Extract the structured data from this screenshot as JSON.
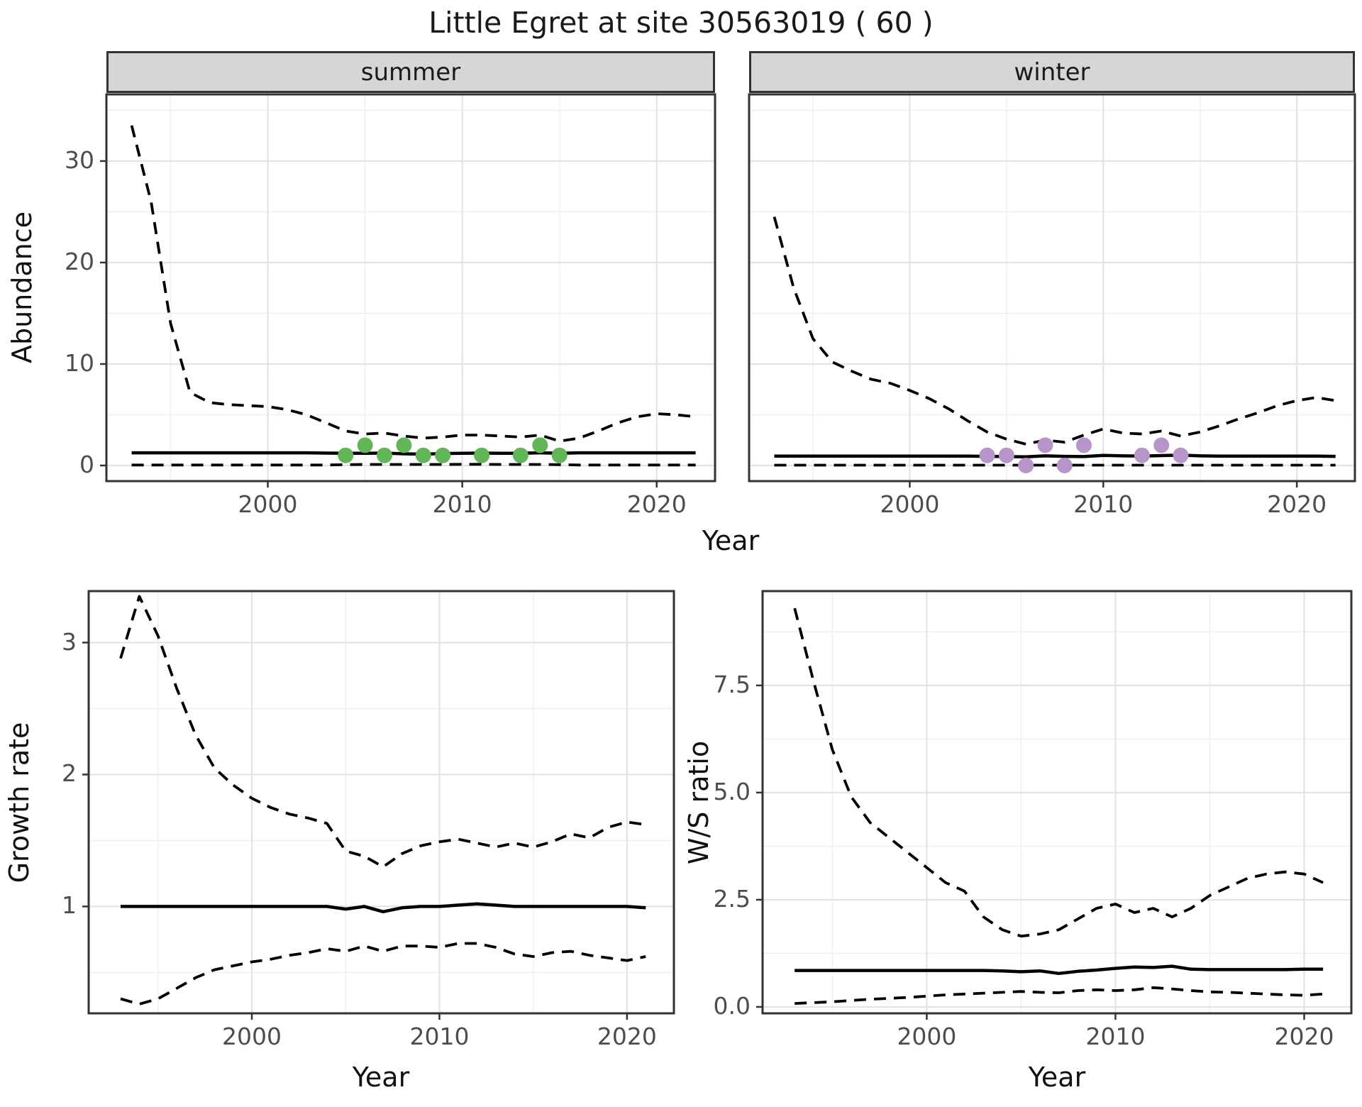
{
  "title": "Little Egret at site 30563019 ( 60 )",
  "colors": {
    "summer_point": "#62b658",
    "winter_point": "#b794c9",
    "line": "#000000",
    "tick_label": "#4d4d4d",
    "text": "#1a1a1a",
    "grid_major": "#e3e3e3",
    "grid_minor": "#f0f0f0",
    "panel_border": "#333333",
    "strip_bg": "#d6d6d6",
    "panel_bg": "#ffffff"
  },
  "chart_data": [
    {
      "id": "abundance-by-season",
      "type": "line",
      "ylabel": "Abundance",
      "xlabel": "Year",
      "x_years": [
        1993,
        1994,
        1995,
        1996,
        1997,
        1998,
        1999,
        2000,
        2001,
        2002,
        2003,
        2004,
        2005,
        2006,
        2007,
        2008,
        2009,
        2010,
        2011,
        2012,
        2013,
        2014,
        2015,
        2016,
        2017,
        2018,
        2019,
        2020,
        2021,
        2022
      ],
      "xticks": [
        2000,
        2010,
        2020
      ],
      "xtick_labels": [
        "2000",
        "2010",
        "2020"
      ],
      "yticks": [
        0,
        10,
        20,
        30
      ],
      "ytick_labels": [
        "0",
        "10",
        "20",
        "30"
      ],
      "xlim": [
        1991.7,
        2023.0
      ],
      "ylim": [
        -1.54,
        36.57
      ],
      "grid": true,
      "legend": "none",
      "facets": [
        {
          "label": "summer",
          "point_color": "#62b658",
          "series": [
            {
              "name": "upper_ci",
              "style": "dashed",
              "values": [
                33.5,
                26.0,
                14.0,
                7.2,
                6.2,
                6.0,
                5.9,
                5.8,
                5.5,
                5.0,
                4.2,
                3.4,
                3.1,
                3.2,
                2.9,
                2.7,
                2.8,
                3.0,
                3.0,
                2.9,
                2.8,
                3.0,
                2.4,
                2.7,
                3.4,
                4.2,
                4.8,
                5.1,
                5.0,
                4.8
              ]
            },
            {
              "name": "fitted",
              "style": "solid",
              "values": [
                1.25,
                1.25,
                1.25,
                1.25,
                1.25,
                1.25,
                1.25,
                1.25,
                1.25,
                1.25,
                1.22,
                1.2,
                1.2,
                1.22,
                1.15,
                1.12,
                1.18,
                1.2,
                1.22,
                1.2,
                1.2,
                1.25,
                1.2,
                1.25,
                1.25,
                1.25,
                1.25,
                1.25,
                1.25,
                1.25
              ]
            },
            {
              "name": "lower_ci",
              "style": "dashed",
              "values": [
                0.05,
                0.05,
                0.05,
                0.05,
                0.05,
                0.05,
                0.05,
                0.05,
                0.05,
                0.05,
                0.05,
                0.08,
                0.1,
                0.1,
                0.1,
                0.1,
                0.1,
                0.12,
                0.12,
                0.1,
                0.1,
                0.1,
                0.08,
                0.05,
                0.05,
                0.05,
                0.05,
                0.05,
                0.05,
                0.05
              ]
            }
          ],
          "points": {
            "x": [
              2004,
              2005,
              2006,
              2007,
              2008,
              2009,
              2011,
              2013,
              2014,
              2015
            ],
            "y": [
              1,
              2,
              1,
              2,
              1,
              1,
              1,
              1,
              2,
              1
            ]
          }
        },
        {
          "label": "winter",
          "point_color": "#b794c9",
          "series": [
            {
              "name": "upper_ci",
              "style": "dashed",
              "values": [
                24.5,
                17.5,
                12.5,
                10.2,
                9.3,
                8.5,
                8.1,
                7.4,
                6.6,
                5.6,
                4.4,
                3.3,
                2.6,
                2.1,
                2.5,
                2.3,
                3.0,
                3.6,
                3.2,
                3.1,
                3.4,
                2.9,
                3.3,
                3.9,
                4.6,
                5.2,
                5.9,
                6.4,
                6.7,
                6.4
              ]
            },
            {
              "name": "fitted",
              "style": "solid",
              "values": [
                0.92,
                0.92,
                0.92,
                0.92,
                0.92,
                0.92,
                0.92,
                0.92,
                0.92,
                0.92,
                0.92,
                0.9,
                0.88,
                0.85,
                0.95,
                0.9,
                0.88,
                1.0,
                0.95,
                0.92,
                0.98,
                1.02,
                0.95,
                0.92,
                0.92,
                0.92,
                0.92,
                0.92,
                0.92,
                0.9
              ]
            },
            {
              "name": "lower_ci",
              "style": "dashed",
              "values": [
                0.03,
                0.03,
                0.03,
                0.03,
                0.03,
                0.03,
                0.03,
                0.03,
                0.03,
                0.03,
                0.03,
                0.03,
                0.03,
                0.03,
                0.03,
                0.03,
                0.03,
                0.03,
                0.03,
                0.03,
                0.03,
                0.03,
                0.03,
                0.03,
                0.03,
                0.03,
                0.03,
                0.03,
                0.03,
                0.03
              ]
            }
          ],
          "points": {
            "x": [
              2004,
              2005,
              2006,
              2007,
              2008,
              2009,
              2012,
              2013,
              2014
            ],
            "y": [
              1,
              1,
              0,
              2,
              0,
              2,
              1,
              2,
              1
            ]
          }
        }
      ]
    },
    {
      "id": "growth-rate",
      "type": "line",
      "ylabel": "Growth rate",
      "xlabel": "Year",
      "x_years": [
        1993,
        1994,
        1995,
        1996,
        1997,
        1998,
        1999,
        2000,
        2001,
        2002,
        2003,
        2004,
        2005,
        2006,
        2007,
        2008,
        2009,
        2010,
        2011,
        2012,
        2013,
        2014,
        2015,
        2016,
        2017,
        2018,
        2019,
        2020,
        2021
      ],
      "xticks": [
        2000,
        2010,
        2020
      ],
      "xtick_labels": [
        "2000",
        "2010",
        "2020"
      ],
      "yticks": [
        1,
        2,
        3
      ],
      "ytick_labels": [
        "1",
        "2",
        "3"
      ],
      "xlim": [
        1991.3,
        2022.5
      ],
      "ylim": [
        0.19,
        3.39
      ],
      "grid": true,
      "legend": "none",
      "series": [
        {
          "name": "upper_ci",
          "style": "dashed",
          "values": [
            2.88,
            3.35,
            3.05,
            2.65,
            2.3,
            2.05,
            1.92,
            1.82,
            1.75,
            1.7,
            1.67,
            1.63,
            1.42,
            1.38,
            1.3,
            1.4,
            1.46,
            1.49,
            1.51,
            1.48,
            1.45,
            1.48,
            1.45,
            1.49,
            1.55,
            1.52,
            1.6,
            1.64,
            1.62
          ]
        },
        {
          "name": "fitted",
          "style": "solid",
          "values": [
            1,
            1,
            1,
            1,
            1,
            1,
            1,
            1,
            1,
            1,
            1,
            1,
            0.98,
            1,
            0.96,
            0.99,
            1,
            1,
            1.01,
            1.02,
            1.01,
            1,
            1,
            1,
            1,
            1,
            1,
            1,
            0.99
          ]
        },
        {
          "name": "lower_ci",
          "style": "dashed",
          "values": [
            0.3,
            0.26,
            0.3,
            0.38,
            0.46,
            0.52,
            0.55,
            0.58,
            0.6,
            0.63,
            0.65,
            0.68,
            0.66,
            0.7,
            0.66,
            0.7,
            0.7,
            0.69,
            0.72,
            0.72,
            0.69,
            0.64,
            0.62,
            0.65,
            0.66,
            0.63,
            0.61,
            0.59,
            0.62
          ]
        }
      ]
    },
    {
      "id": "ws-ratio",
      "type": "line",
      "ylabel": "W/S ratio",
      "xlabel": "Year",
      "x_years": [
        1993,
        1994,
        1995,
        1996,
        1997,
        1998,
        1999,
        2000,
        2001,
        2002,
        2003,
        2004,
        2005,
        2006,
        2007,
        2008,
        2009,
        2010,
        2011,
        2012,
        2013,
        2014,
        2015,
        2016,
        2017,
        2018,
        2019,
        2020,
        2021
      ],
      "xticks": [
        2000,
        2010,
        2020
      ],
      "xtick_labels": [
        "2000",
        "2010",
        "2020"
      ],
      "yticks": [
        0,
        2.5,
        5,
        7.5
      ],
      "ytick_labels": [
        "0.0",
        "2.5",
        "5.0",
        "7.5"
      ],
      "xlim": [
        1991.3,
        2022.5
      ],
      "ylim": [
        -0.15,
        9.7
      ],
      "grid": true,
      "legend": "none",
      "series": [
        {
          "name": "upper_ci",
          "style": "dashed",
          "values": [
            9.3,
            7.6,
            6.0,
            4.9,
            4.3,
            3.95,
            3.6,
            3.25,
            2.9,
            2.7,
            2.1,
            1.8,
            1.65,
            1.7,
            1.8,
            2.05,
            2.3,
            2.4,
            2.2,
            2.3,
            2.1,
            2.3,
            2.6,
            2.8,
            3.0,
            3.1,
            3.15,
            3.1,
            2.9
          ]
        },
        {
          "name": "fitted",
          "style": "solid",
          "values": [
            0.85,
            0.85,
            0.85,
            0.85,
            0.85,
            0.85,
            0.85,
            0.85,
            0.85,
            0.85,
            0.85,
            0.84,
            0.82,
            0.84,
            0.78,
            0.83,
            0.86,
            0.9,
            0.93,
            0.92,
            0.95,
            0.88,
            0.87,
            0.87,
            0.87,
            0.87,
            0.87,
            0.88,
            0.88
          ]
        },
        {
          "name": "lower_ci",
          "style": "dashed",
          "values": [
            0.08,
            0.1,
            0.12,
            0.15,
            0.18,
            0.2,
            0.22,
            0.25,
            0.28,
            0.3,
            0.32,
            0.34,
            0.36,
            0.34,
            0.33,
            0.38,
            0.4,
            0.38,
            0.4,
            0.45,
            0.42,
            0.38,
            0.35,
            0.34,
            0.32,
            0.3,
            0.28,
            0.27,
            0.3
          ]
        }
      ]
    }
  ]
}
